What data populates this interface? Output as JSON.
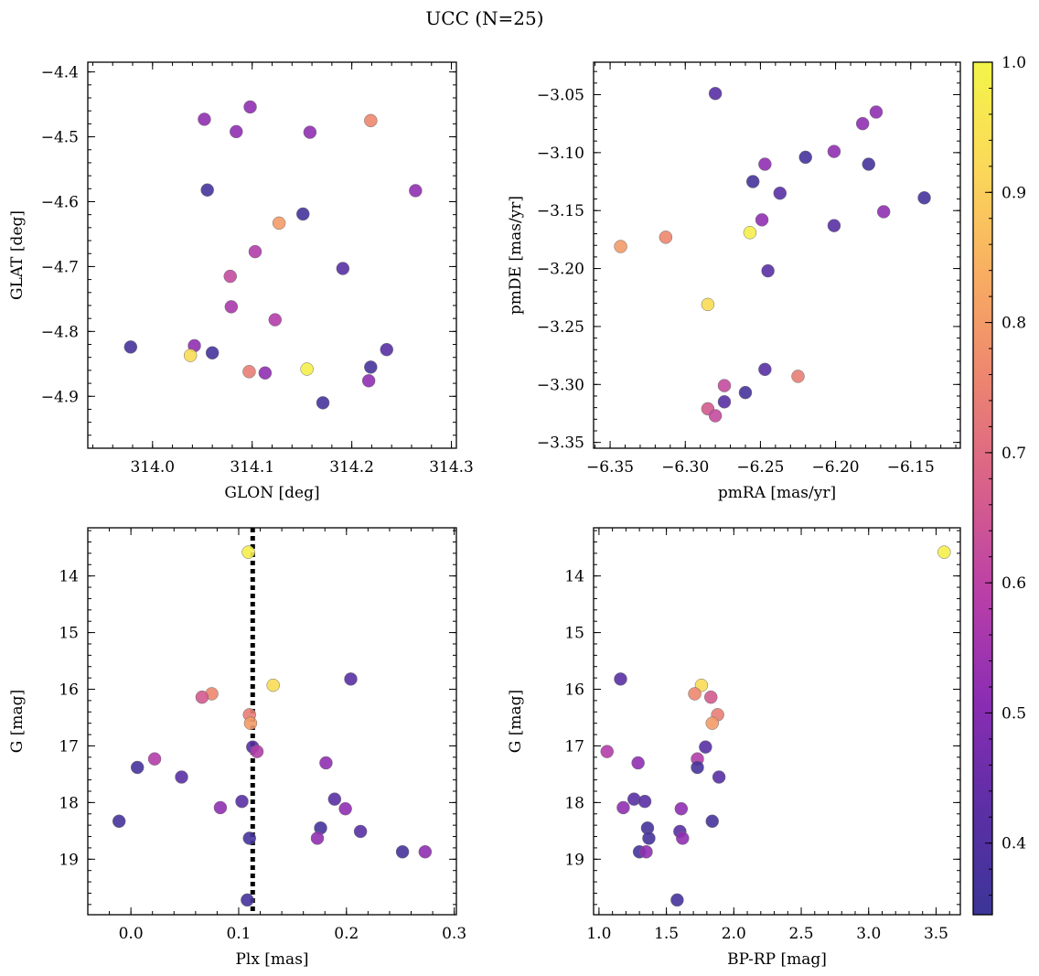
{
  "figure": {
    "title": "UCC (N=25)"
  },
  "chart_data": [
    {
      "type": "scatter",
      "panel": "top-left",
      "xlabel": "GLON [deg]",
      "ylabel": "GLAT [deg]",
      "xlim": [
        313.935,
        314.305
      ],
      "ylim": [
        -4.98,
        -4.385
      ],
      "yinvert": false,
      "xticks": [
        314.0,
        314.1,
        314.2,
        314.3
      ],
      "xtick_labels": [
        "314.0",
        "314.1",
        "314.2",
        "314.3"
      ],
      "yticks": [
        -4.9,
        -4.8,
        -4.7,
        -4.6,
        -4.5,
        -4.4
      ],
      "ytick_labels": [
        "−4.9",
        "−4.8",
        "−4.7",
        "−4.6",
        "−4.5",
        "−4.4"
      ],
      "x": [
        314.052,
        314.098,
        314.084,
        314.158,
        314.219,
        314.055,
        314.264,
        314.151,
        314.127,
        314.103,
        314.078,
        314.191,
        314.079,
        314.123,
        313.978,
        314.042,
        314.06,
        314.038,
        314.235,
        314.219,
        314.097,
        314.113,
        314.155,
        314.217,
        314.171
      ],
      "y": [
        -4.473,
        -4.454,
        -4.492,
        -4.493,
        -4.475,
        -4.582,
        -4.583,
        -4.619,
        -4.633,
        -4.677,
        -4.715,
        -4.703,
        -4.762,
        -4.782,
        -4.824,
        -4.822,
        -4.833,
        -4.837,
        -4.828,
        -4.855,
        -4.862,
        -4.864,
        -4.858,
        -4.876,
        -4.91
      ],
      "c": [
        0.52,
        0.52,
        0.52,
        0.52,
        0.76,
        0.37,
        0.52,
        0.37,
        0.8,
        0.58,
        0.62,
        0.42,
        0.56,
        0.58,
        0.37,
        0.52,
        0.37,
        0.93,
        0.42,
        0.37,
        0.74,
        0.52,
        0.98,
        0.52,
        0.37
      ]
    },
    {
      "type": "scatter",
      "panel": "top-right",
      "xlabel": "pmRA [mas/yr]",
      "ylabel": "pmDE [mas/yr]",
      "xlim": [
        -6.361,
        -6.117
      ],
      "ylim": [
        -3.355,
        -3.022
      ],
      "yinvert": false,
      "xticks": [
        -6.35,
        -6.3,
        -6.25,
        -6.2,
        -6.15
      ],
      "xtick_labels": [
        "−6.35",
        "−6.30",
        "−6.25",
        "−6.20",
        "−6.15"
      ],
      "yticks": [
        -3.35,
        -3.3,
        -3.25,
        -3.2,
        -3.15,
        -3.1,
        -3.05
      ],
      "ytick_labels": [
        "−3.35",
        "−3.30",
        "−3.25",
        "−3.20",
        "−3.15",
        "−3.10",
        "−3.05"
      ],
      "x": [
        -6.28,
        -6.173,
        -6.182,
        -6.201,
        -6.22,
        -6.247,
        -6.178,
        -6.255,
        -6.237,
        -6.141,
        -6.168,
        -6.201,
        -6.249,
        -6.257,
        -6.313,
        -6.343,
        -6.245,
        -6.285,
        -6.247,
        -6.225,
        -6.274,
        -6.274,
        -6.26,
        -6.285,
        -6.28
      ],
      "y": [
        -3.049,
        -3.065,
        -3.075,
        -3.099,
        -3.104,
        -3.11,
        -3.11,
        -3.125,
        -3.135,
        -3.139,
        -3.151,
        -3.163,
        -3.158,
        -3.169,
        -3.173,
        -3.181,
        -3.202,
        -3.231,
        -3.287,
        -3.293,
        -3.301,
        -3.315,
        -3.307,
        -3.321,
        -3.327
      ],
      "c": [
        0.42,
        0.52,
        0.52,
        0.52,
        0.37,
        0.52,
        0.37,
        0.37,
        0.42,
        0.37,
        0.52,
        0.42,
        0.52,
        0.98,
        0.76,
        0.8,
        0.42,
        0.93,
        0.42,
        0.74,
        0.62,
        0.42,
        0.37,
        0.66,
        0.62
      ]
    },
    {
      "type": "scatter",
      "panel": "bottom-left",
      "xlabel": "Plx [mas]",
      "ylabel": "G [mag]",
      "xlim": [
        -0.04,
        0.302
      ],
      "ylim": [
        13.15,
        19.98
      ],
      "yinvert": true,
      "xticks": [
        0.0,
        0.1,
        0.2,
        0.3
      ],
      "xtick_labels": [
        "0.0",
        "0.1",
        "0.2",
        "0.3"
      ],
      "yticks": [
        14,
        15,
        16,
        17,
        18,
        19
      ],
      "ytick_labels": [
        "14",
        "15",
        "16",
        "17",
        "18",
        "19"
      ],
      "vline": {
        "x": 0.113,
        "style": "dotted",
        "color": "#000000"
      },
      "x": [
        0.109,
        0.204,
        0.132,
        0.075,
        0.066,
        0.11,
        0.111,
        0.113,
        0.117,
        0.022,
        0.181,
        0.006,
        0.047,
        0.189,
        0.103,
        0.083,
        0.199,
        -0.011,
        0.176,
        0.213,
        0.11,
        0.252,
        0.173,
        0.273,
        0.108
      ],
      "y": [
        13.58,
        15.82,
        15.93,
        16.08,
        16.14,
        16.45,
        16.6,
        17.02,
        17.1,
        17.23,
        17.3,
        17.38,
        17.55,
        17.94,
        17.98,
        18.09,
        18.11,
        18.33,
        18.45,
        18.51,
        18.63,
        18.87,
        18.63,
        18.87,
        19.72
      ],
      "c": [
        0.98,
        0.42,
        0.93,
        0.76,
        0.66,
        0.74,
        0.8,
        0.42,
        0.58,
        0.58,
        0.52,
        0.37,
        0.42,
        0.42,
        0.42,
        0.52,
        0.52,
        0.37,
        0.37,
        0.42,
        0.37,
        0.37,
        0.52,
        0.52,
        0.37
      ]
    },
    {
      "type": "scatter",
      "panel": "bottom-right",
      "xlabel": "BP-RP [mag]",
      "ylabel": "G [mag]",
      "xlim": [
        0.96,
        3.68
      ],
      "ylim": [
        13.15,
        19.98
      ],
      "yinvert": true,
      "xticks": [
        1.0,
        1.5,
        2.0,
        2.5,
        3.0,
        3.5
      ],
      "xtick_labels": [
        "1.0",
        "1.5",
        "2.0",
        "2.5",
        "3.0",
        "3.5"
      ],
      "yticks": [
        14,
        15,
        16,
        17,
        18,
        19
      ],
      "ytick_labels": [
        "14",
        "15",
        "16",
        "17",
        "18",
        "19"
      ],
      "x": [
        3.56,
        1.16,
        1.76,
        1.71,
        1.83,
        1.88,
        1.84,
        1.79,
        1.06,
        1.73,
        1.29,
        1.73,
        1.89,
        1.26,
        1.34,
        1.18,
        1.61,
        1.84,
        1.36,
        1.6,
        1.37,
        1.3,
        1.62,
        1.35,
        1.58
      ],
      "y": [
        13.58,
        15.82,
        15.93,
        16.08,
        16.14,
        16.45,
        16.6,
        17.02,
        17.1,
        17.23,
        17.3,
        17.38,
        17.55,
        17.94,
        17.98,
        18.09,
        18.11,
        18.33,
        18.45,
        18.51,
        18.63,
        18.87,
        18.63,
        18.87,
        19.72
      ],
      "c": [
        0.98,
        0.42,
        0.93,
        0.76,
        0.66,
        0.74,
        0.8,
        0.42,
        0.58,
        0.58,
        0.52,
        0.37,
        0.42,
        0.42,
        0.42,
        0.52,
        0.52,
        0.37,
        0.37,
        0.42,
        0.37,
        0.37,
        0.52,
        0.52,
        0.37
      ]
    }
  ],
  "colorbar": {
    "colormap": "plasma",
    "range": [
      0.345,
      1.0
    ],
    "ticks": [
      0.4,
      0.5,
      0.6,
      0.7,
      0.8,
      0.9,
      1.0
    ],
    "tick_labels": [
      "0.4",
      "0.5",
      "0.6",
      "0.7",
      "0.8",
      "0.9",
      "1.0"
    ],
    "colors": [
      "#3c3597",
      "#5c2fa5",
      "#8a2db3",
      "#b93fa8",
      "#d7608a",
      "#ec8470",
      "#f8ad62",
      "#fbd85a",
      "#f3f548"
    ]
  }
}
